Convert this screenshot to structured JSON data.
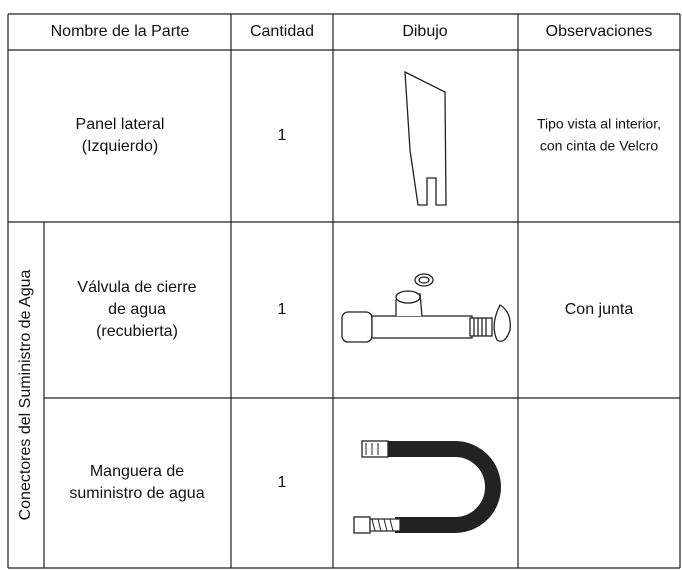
{
  "table": {
    "header": [
      "Nombre de la Parte",
      "Cantidad",
      "Dibujo",
      "Observaciones"
    ],
    "group_label": "Conectores del Suministro de Agua",
    "rows": [
      {
        "name": [
          "Panel lateral",
          "(Izquierdo)"
        ],
        "quantity": 1,
        "remarks": [
          "Tipo vista al interior,",
          "con cinta de Velcro"
        ]
      },
      {
        "name": [
          "Válvula de cierre",
          "de agua",
          "(recubierta)"
        ],
        "quantity": 1,
        "remarks": [
          "Con junta"
        ]
      },
      {
        "name": [
          "Manguera de",
          "suministro de agua"
        ],
        "quantity": 1,
        "remarks": []
      }
    ]
  }
}
